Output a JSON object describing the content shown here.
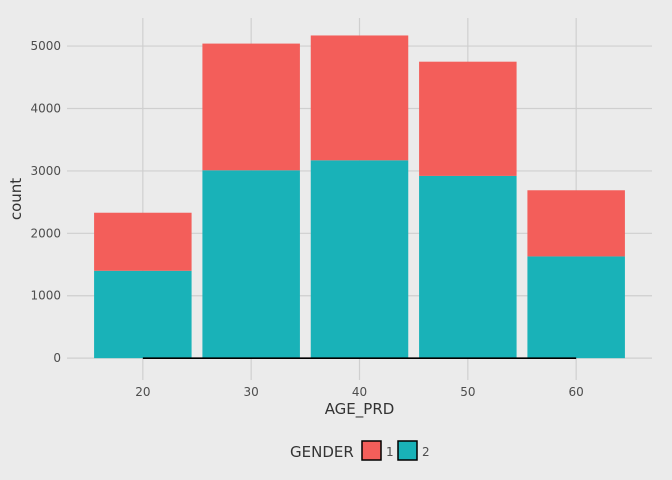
{
  "chart_data": {
    "type": "bar",
    "stacked": true,
    "xlabel": "AGE_PRD",
    "ylabel": "count",
    "categories": [
      20,
      30,
      40,
      50,
      60
    ],
    "x_ticks": [
      20,
      30,
      40,
      50,
      60
    ],
    "xlim": [
      13,
      67
    ],
    "ylim": [
      -350,
      5450
    ],
    "y_ticks": [
      0,
      1000,
      2000,
      3000,
      4000,
      5000
    ],
    "bar_width": 9,
    "grid": true,
    "series": [
      {
        "name": "2",
        "color": "#19b2b8",
        "values": [
          1400,
          3010,
          3170,
          2920,
          1630
        ]
      },
      {
        "name": "1",
        "color": "#f35e5a",
        "values": [
          930,
          2030,
          2000,
          1830,
          1060
        ]
      }
    ],
    "legend": {
      "title": "GENDER",
      "position": "bottom",
      "items": [
        {
          "label": "1",
          "color": "#f35e5a"
        },
        {
          "label": "2",
          "color": "#19b2b8"
        }
      ]
    }
  }
}
